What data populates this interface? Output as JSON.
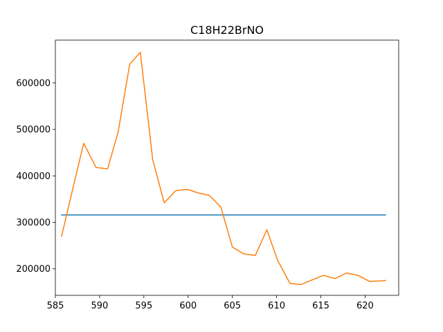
{
  "chart_data": {
    "type": "line",
    "title": "C18H22BrNO",
    "xlabel": "",
    "ylabel": "",
    "xlim": [
      585.0,
      623.8
    ],
    "ylim": [
      143000,
      692000
    ],
    "x_ticks": [
      585,
      590,
      595,
      600,
      605,
      610,
      615,
      620
    ],
    "y_ticks": [
      200000,
      300000,
      400000,
      500000,
      600000
    ],
    "grid": false,
    "series": [
      {
        "color": "#1f77b4",
        "x": [
          585.7,
          622.3
        ],
        "y": [
          316000,
          316000
        ]
      },
      {
        "color": "#ff7f0e",
        "x": [
          585.7,
          587.0,
          588.2,
          589.6,
          590.9,
          592.1,
          593.4,
          594.6,
          596.0,
          597.3,
          598.6,
          599.9,
          601.2,
          602.4,
          603.7,
          605.0,
          606.3,
          607.6,
          608.9,
          610.1,
          611.5,
          612.7,
          614.0,
          615.3,
          616.6,
          617.9,
          619.2,
          620.5,
          621.8,
          622.3
        ],
        "y": [
          270000,
          375000,
          470000,
          418000,
          415000,
          495000,
          640000,
          666000,
          435000,
          342000,
          368000,
          371000,
          363000,
          358000,
          333000,
          247000,
          232000,
          229000,
          284000,
          219000,
          169000,
          166000,
          176000,
          186000,
          179000,
          191000,
          186000,
          173000,
          174000,
          175000
        ]
      }
    ]
  }
}
